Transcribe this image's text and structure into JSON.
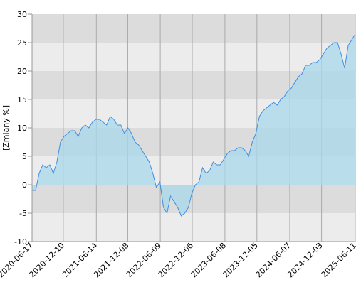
{
  "chart_data": {
    "type": "area",
    "ylabel": "[Zmiany %]",
    "x": [
      "2020-06-17",
      "2020-07-07",
      "2020-07-27",
      "2020-08-16",
      "2020-09-05",
      "2020-09-25",
      "2020-10-15",
      "2020-11-04",
      "2020-11-24",
      "2020-12-14",
      "2021-01-03",
      "2021-01-23",
      "2021-02-12",
      "2021-03-04",
      "2021-03-24",
      "2021-04-13",
      "2021-05-03",
      "2021-05-23",
      "2021-06-12",
      "2021-07-02",
      "2021-07-22",
      "2021-08-11",
      "2021-08-31",
      "2021-09-20",
      "2021-10-10",
      "2021-10-30",
      "2021-11-19",
      "2021-12-09",
      "2021-12-29",
      "2022-01-18",
      "2022-02-07",
      "2022-02-27",
      "2022-03-19",
      "2022-04-08",
      "2022-04-28",
      "2022-05-18",
      "2022-06-07",
      "2022-06-27",
      "2022-07-17",
      "2022-08-06",
      "2022-08-26",
      "2022-09-15",
      "2022-10-05",
      "2022-10-25",
      "2022-11-14",
      "2022-12-04",
      "2022-12-24",
      "2023-01-13",
      "2023-02-02",
      "2023-02-22",
      "2023-03-14",
      "2023-04-03",
      "2023-04-23",
      "2023-05-13",
      "2023-06-02",
      "2023-06-22",
      "2023-07-12",
      "2023-08-01",
      "2023-08-21",
      "2023-09-10",
      "2023-09-30",
      "2023-10-20",
      "2023-11-09",
      "2023-11-29",
      "2023-12-19",
      "2024-01-08",
      "2024-01-28",
      "2024-02-17",
      "2024-03-08",
      "2024-03-28",
      "2024-04-17",
      "2024-05-07",
      "2024-05-27",
      "2024-06-16",
      "2024-07-06",
      "2024-07-26",
      "2024-08-15",
      "2024-09-04",
      "2024-09-24",
      "2024-10-14",
      "2024-11-03",
      "2024-11-23",
      "2024-12-13",
      "2025-01-02",
      "2025-01-22",
      "2025-02-11",
      "2025-03-03",
      "2025-03-23",
      "2025-04-12",
      "2025-05-02",
      "2025-05-22",
      "2025-06-11"
    ],
    "values": [
      -1,
      -1,
      2,
      3.5,
      3,
      3.5,
      2,
      4,
      7.5,
      8.5,
      9,
      9.5,
      9.5,
      8.5,
      10,
      10.5,
      10,
      11,
      11.5,
      11.5,
      11,
      10.5,
      12,
      11.5,
      10.5,
      10.5,
      9,
      10,
      9,
      7.5,
      7,
      6,
      5,
      4,
      2,
      -0.5,
      0.5,
      -4,
      -5,
      -2,
      -3,
      -4,
      -5.5,
      -5,
      -4,
      -1.5,
      0,
      0.5,
      3,
      2,
      2.5,
      4,
      3.5,
      3.5,
      4.5,
      5.5,
      6,
      6,
      6.5,
      6.5,
      6,
      5,
      7.5,
      9,
      12,
      13,
      13.5,
      14,
      14.5,
      14,
      15,
      15.5,
      16.5,
      17,
      18,
      19,
      19.5,
      21,
      21,
      21.5,
      21.5,
      22,
      23,
      24,
      24.5,
      25,
      25,
      23,
      20.5,
      24.5,
      25.5,
      26.5
    ],
    "color": "#3d8fe0",
    "fill_color": "#a9d8ec",
    "xlim": [
      "2020-06-17",
      "2025-06-11"
    ],
    "xticks": [
      "2020-06-17",
      "2020-12-10",
      "2021-06-14",
      "2021-12-08",
      "2022-06-09",
      "2022-12-06",
      "2023-06-08",
      "2023-12-05",
      "2024-06-07",
      "2024-12-03",
      "2025-06-11"
    ],
    "ylim": [
      -10,
      30
    ],
    "yticks": [
      -10,
      -5,
      0,
      5,
      10,
      15,
      20,
      25,
      30
    ],
    "grid": true
  }
}
